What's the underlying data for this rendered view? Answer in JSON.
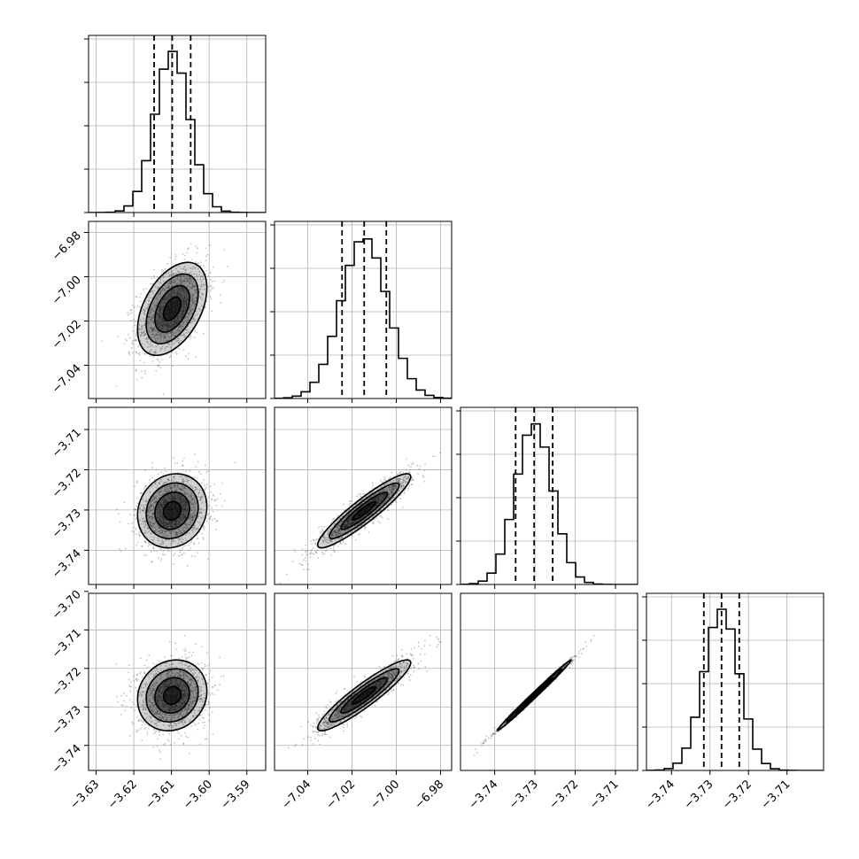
{
  "chart_data": {
    "type": "corner",
    "grid": true,
    "quantiles": [
      0.16,
      0.5,
      0.84
    ],
    "parameters": [
      {
        "mean": -3.6098,
        "sd": 0.0046,
        "range": [
          -3.632,
          -3.585
        ],
        "ticks": [
          -3.63,
          -3.62,
          -3.61,
          -3.6,
          -3.59
        ],
        "tick_labels": [
          "−3.63",
          "−3.62",
          "−3.61",
          "−3.60",
          "−3.59"
        ],
        "quantile_values": [
          -3.6146,
          -3.6098,
          -3.6049
        ],
        "hist_peak": 1.0
      },
      {
        "mean": -7.0145,
        "sd": 0.0105,
        "range": [
          -7.055,
          -6.975
        ],
        "ticks": [
          -7.04,
          -7.02,
          -7.0,
          -6.98
        ],
        "tick_labels": [
          "−7.04",
          "−7.02",
          "−7.00",
          "−6.98"
        ],
        "quantile_values": [
          -7.0245,
          -7.0145,
          -7.0045
        ],
        "hist_peak": 1.0
      },
      {
        "mean": -3.7302,
        "sd": 0.0046,
        "range": [
          -3.7485,
          -3.7045
        ],
        "ticks": [
          -3.74,
          -3.73,
          -3.72,
          -3.71
        ],
        "tick_labels": [
          "−3.74",
          "−3.73",
          "−3.72",
          "−3.71"
        ],
        "quantile_values": [
          -3.7348,
          -3.7302,
          -3.7256
        ],
        "hist_peak": 1.0
      },
      {
        "mean": -3.727,
        "sd": 0.0046,
        "range": [
          -3.7465,
          -3.7005
        ],
        "ticks": [
          -3.74,
          -3.73,
          -3.72,
          -3.71,
          -3.7
        ],
        "tick_labels": [
          "−3.74",
          "−3.73",
          "−3.72",
          "−3.71",
          "−3.70"
        ],
        "quantile_values": [
          -3.7316,
          -3.727,
          -3.7224
        ],
        "hist_peak": 1.0
      }
    ],
    "y_axis_overrides": {
      "3": {
        "ticks": [
          -3.74,
          -3.73,
          -3.72,
          -3.71,
          -3.7
        ],
        "tick_labels": [
          "−3.74",
          "−3.73",
          "−3.72",
          "−3.71",
          "−3.70"
        ]
      }
    },
    "correlations": [
      [
        1.0,
        0.45,
        0.12,
        0.12
      ],
      [
        0.45,
        1.0,
        0.92,
        0.92
      ],
      [
        0.12,
        0.92,
        1.0,
        0.995
      ],
      [
        0.12,
        0.92,
        0.995,
        1.0
      ]
    ],
    "contour_levels_sigma": [
      0.5,
      1.0,
      1.5,
      2.0
    ],
    "colors": {
      "axes": "#000000",
      "grid": "#b0b0b0",
      "points": "#555555",
      "contour": "#000000",
      "density": "#000000"
    }
  }
}
